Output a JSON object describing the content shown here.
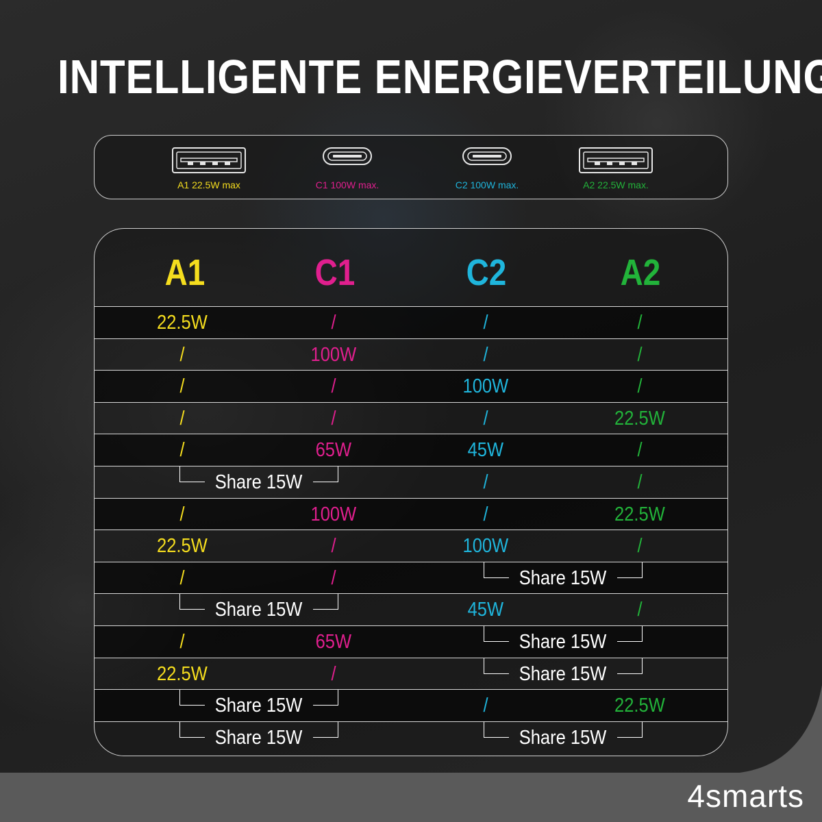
{
  "title": "INTELLIGENTE ENERGIEVERTEILUNG",
  "colors": {
    "A1": "#f5dd1e",
    "C1": "#e01f8e",
    "C2": "#1fb5dc",
    "A2": "#22b33a",
    "share": "#ffffff"
  },
  "ports": [
    {
      "key": "A1",
      "type": "usb-a",
      "label": "A1 22.5W max",
      "icon": "usb-a-port-icon"
    },
    {
      "key": "C1",
      "type": "usb-c",
      "label": "C1 100W max.",
      "icon": "usb-c-port-icon"
    },
    {
      "key": "C2",
      "type": "usb-c",
      "label": "C2 100W max.",
      "icon": "usb-c-port-icon"
    },
    {
      "key": "A2",
      "type": "usb-a",
      "label": "A2 22.5W max.",
      "icon": "usb-a-port-icon"
    }
  ],
  "headers": [
    "A1",
    "C1",
    "C2",
    "A2"
  ],
  "rows": [
    {
      "A1": "22.5W",
      "C1": "/",
      "C2": "/",
      "A2": "/"
    },
    {
      "A1": "/",
      "C1": "100W",
      "C2": "/",
      "A2": "/"
    },
    {
      "A1": "/",
      "C1": "/",
      "C2": "100W",
      "A2": "/"
    },
    {
      "A1": "/",
      "C1": "/",
      "C2": "/",
      "A2": "22.5W"
    },
    {
      "A1": "/",
      "C1": "65W",
      "C2": "45W",
      "A2": "/"
    },
    {
      "shareLeft": "Share 15W",
      "C2": "/",
      "A2": "/"
    },
    {
      "A1": "/",
      "C1": "100W",
      "C2": "/",
      "A2": "22.5W"
    },
    {
      "A1": "22.5W",
      "C1": "/",
      "C2": "100W",
      "A2": "/"
    },
    {
      "A1": "/",
      "C1": "/",
      "shareRight": "Share 15W"
    },
    {
      "shareLeft": "Share 15W",
      "C2": "45W",
      "A2": "/"
    },
    {
      "A1": "/",
      "C1": "65W",
      "shareRight": "Share 15W"
    },
    {
      "A1": "22.5W",
      "C1": "/",
      "shareRight": "Share 15W"
    },
    {
      "shareLeft": "Share 15W",
      "C2": "/",
      "A2": "22.5W"
    },
    {
      "shareLeft": "Share 15W",
      "shareRight": "Share 15W"
    }
  ],
  "brand": "4smarts"
}
